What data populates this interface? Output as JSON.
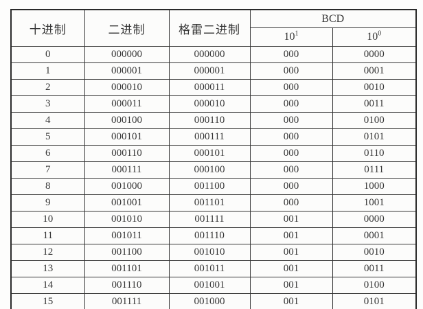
{
  "page": {
    "background_color": "#fdfdfc"
  },
  "table": {
    "border_color": "#2a2a2a",
    "text_color": "#363636",
    "headers": {
      "decimal": "十进制",
      "binary": "二进制",
      "gray": "格雷二进制",
      "bcd_group": "BCD",
      "power_base": "10",
      "tens_exponent": "1",
      "ones_exponent": "0"
    },
    "column_keys": [
      "decimal",
      "binary",
      "gray",
      "bcd_tens",
      "bcd_ones"
    ],
    "rows": [
      {
        "decimal": "0",
        "binary": "000000",
        "gray": "000000",
        "bcd_tens": "000",
        "bcd_ones": "0000"
      },
      {
        "decimal": "1",
        "binary": "000001",
        "gray": "000001",
        "bcd_tens": "000",
        "bcd_ones": "0001"
      },
      {
        "decimal": "2",
        "binary": "000010",
        "gray": "000011",
        "bcd_tens": "000",
        "bcd_ones": "0010"
      },
      {
        "decimal": "3",
        "binary": "000011",
        "gray": "000010",
        "bcd_tens": "000",
        "bcd_ones": "0011"
      },
      {
        "decimal": "4",
        "binary": "000100",
        "gray": "000110",
        "bcd_tens": "000",
        "bcd_ones": "0100"
      },
      {
        "decimal": "5",
        "binary": "000101",
        "gray": "000111",
        "bcd_tens": "000",
        "bcd_ones": "0101"
      },
      {
        "decimal": "6",
        "binary": "000110",
        "gray": "000101",
        "bcd_tens": "000",
        "bcd_ones": "0110"
      },
      {
        "decimal": "7",
        "binary": "000111",
        "gray": "000100",
        "bcd_tens": "000",
        "bcd_ones": "0111"
      },
      {
        "decimal": "8",
        "binary": "001000",
        "gray": "001100",
        "bcd_tens": "000",
        "bcd_ones": "1000"
      },
      {
        "decimal": "9",
        "binary": "001001",
        "gray": "001101",
        "bcd_tens": "000",
        "bcd_ones": "1001"
      },
      {
        "decimal": "10",
        "binary": "001010",
        "gray": "001111",
        "bcd_tens": "001",
        "bcd_ones": "0000"
      },
      {
        "decimal": "11",
        "binary": "001011",
        "gray": "001110",
        "bcd_tens": "001",
        "bcd_ones": "0001"
      },
      {
        "decimal": "12",
        "binary": "001100",
        "gray": "001010",
        "bcd_tens": "001",
        "bcd_ones": "0010"
      },
      {
        "decimal": "13",
        "binary": "001101",
        "gray": "001011",
        "bcd_tens": "001",
        "bcd_ones": "0011"
      },
      {
        "decimal": "14",
        "binary": "001110",
        "gray": "001001",
        "bcd_tens": "001",
        "bcd_ones": "0100"
      },
      {
        "decimal": "15",
        "binary": "001111",
        "gray": "001000",
        "bcd_tens": "001",
        "bcd_ones": "0101"
      }
    ]
  }
}
